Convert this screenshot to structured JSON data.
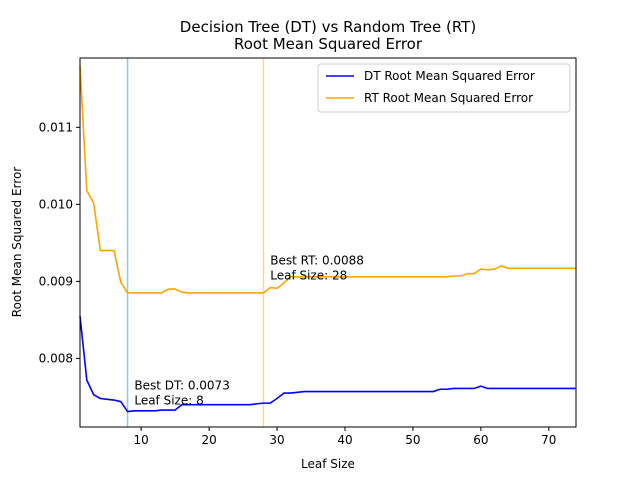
{
  "chart_data": {
    "type": "line",
    "title": "Decision Tree (DT) vs Random Tree (RT)",
    "subtitle": "Root Mean Squared Error",
    "xlabel": "Leaf Size",
    "ylabel": "Root Mean Squared Error",
    "xlim": [
      1,
      74
    ],
    "ylim": [
      0.00711,
      0.0119
    ],
    "xticks": [
      10,
      20,
      30,
      40,
      50,
      60,
      70
    ],
    "yticks": [
      0.008,
      0.009,
      0.01,
      0.011
    ],
    "ytick_labels": [
      "0.008",
      "0.009",
      "0.010",
      "0.011"
    ],
    "grid": false,
    "legend_position": "top-right",
    "series": [
      {
        "name": "DT Root Mean Squared Error",
        "color": "#0000ff",
        "x": [
          1,
          2,
          3,
          4,
          5,
          6,
          7,
          8,
          9,
          10,
          11,
          12,
          13,
          14,
          15,
          16,
          17,
          18,
          19,
          20,
          21,
          22,
          23,
          24,
          25,
          26,
          27,
          28,
          29,
          30,
          31,
          32,
          33,
          34,
          35,
          36,
          37,
          38,
          39,
          40,
          41,
          42,
          43,
          44,
          45,
          46,
          47,
          48,
          49,
          50,
          51,
          52,
          53,
          54,
          55,
          56,
          57,
          58,
          59,
          60,
          61,
          62,
          63,
          64,
          65,
          66,
          67,
          68,
          69,
          70,
          71,
          72,
          73,
          74
        ],
        "y": [
          0.00855,
          0.00772,
          0.00753,
          0.00748,
          0.00747,
          0.00746,
          0.00744,
          0.00731,
          0.00732,
          0.00732,
          0.00732,
          0.00732,
          0.00733,
          0.00733,
          0.00733,
          0.0074,
          0.0074,
          0.0074,
          0.0074,
          0.0074,
          0.0074,
          0.0074,
          0.0074,
          0.0074,
          0.0074,
          0.0074,
          0.00741,
          0.00742,
          0.00742,
          0.00748,
          0.00755,
          0.00755,
          0.00756,
          0.00757,
          0.00757,
          0.00757,
          0.00757,
          0.00757,
          0.00757,
          0.00757,
          0.00757,
          0.00757,
          0.00757,
          0.00757,
          0.00757,
          0.00757,
          0.00757,
          0.00757,
          0.00757,
          0.00757,
          0.00757,
          0.00757,
          0.00757,
          0.0076,
          0.0076,
          0.00761,
          0.00761,
          0.00761,
          0.00761,
          0.00764,
          0.00761,
          0.00761,
          0.00761,
          0.00761,
          0.00761,
          0.00761,
          0.00761,
          0.00761,
          0.00761,
          0.00761,
          0.00761,
          0.00761,
          0.00761,
          0.00761
        ]
      },
      {
        "name": "RT Root Mean Squared Error",
        "color": "#ffa500",
        "x": [
          1,
          2,
          3,
          4,
          5,
          6,
          7,
          8,
          9,
          10,
          11,
          12,
          13,
          14,
          15,
          16,
          17,
          18,
          19,
          20,
          21,
          22,
          23,
          24,
          25,
          26,
          27,
          28,
          29,
          30,
          31,
          32,
          33,
          34,
          35,
          36,
          37,
          38,
          39,
          40,
          41,
          42,
          43,
          44,
          45,
          46,
          47,
          48,
          49,
          50,
          51,
          52,
          53,
          54,
          55,
          56,
          57,
          58,
          59,
          60,
          61,
          62,
          63,
          64,
          65,
          66,
          67,
          68,
          69,
          70,
          71,
          72,
          73,
          74
        ],
        "y": [
          0.0118,
          0.01018,
          0.01002,
          0.0094,
          0.0094,
          0.0094,
          0.00899,
          0.00885,
          0.00885,
          0.00885,
          0.00885,
          0.00885,
          0.00885,
          0.0089,
          0.0089,
          0.00886,
          0.00885,
          0.00885,
          0.00885,
          0.00885,
          0.00885,
          0.00885,
          0.00885,
          0.00885,
          0.00885,
          0.00885,
          0.00885,
          0.00885,
          0.00892,
          0.00891,
          0.00898,
          0.00906,
          0.00906,
          0.00906,
          0.00906,
          0.00906,
          0.00906,
          0.00906,
          0.00906,
          0.00906,
          0.00906,
          0.00906,
          0.00906,
          0.00906,
          0.00906,
          0.00906,
          0.00906,
          0.00906,
          0.00906,
          0.00906,
          0.00906,
          0.00906,
          0.00906,
          0.00906,
          0.00906,
          0.00907,
          0.00907,
          0.0091,
          0.0091,
          0.00916,
          0.00915,
          0.00916,
          0.0092,
          0.00917,
          0.00917,
          0.00917,
          0.00917,
          0.00917,
          0.00917,
          0.00917,
          0.00917,
          0.00917,
          0.00917,
          0.00917
        ]
      }
    ],
    "markers": [
      {
        "name": "best-dt-line",
        "x": 8,
        "color": "#87ceeb"
      },
      {
        "name": "best-rt-line",
        "x": 28,
        "color": "#ffd88a"
      }
    ],
    "annotations": [
      {
        "name": "best-dt-annotation",
        "lines": [
          "Best DT: 0.0073",
          "Leaf Size: 8"
        ],
        "x": 9,
        "y": 0.0076
      },
      {
        "name": "best-rt-annotation",
        "lines": [
          "Best RT: 0.0088",
          "Leaf Size: 28"
        ],
        "x": 29,
        "y": 0.00922
      }
    ]
  }
}
